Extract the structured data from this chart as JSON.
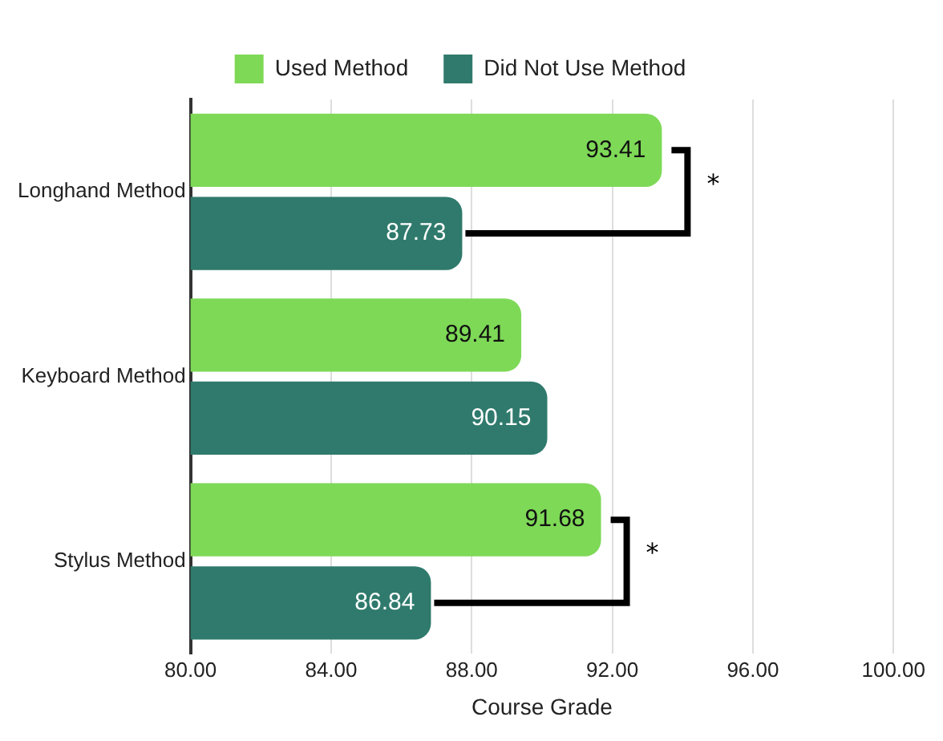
{
  "chart_data": {
    "type": "bar",
    "orientation": "horizontal",
    "xlabel": "Course Grade",
    "categories": [
      "Longhand Method",
      "Keyboard Method",
      "Stylus Method"
    ],
    "series": [
      {
        "name": "Used Method",
        "color": "#7ed957",
        "values": [
          93.41,
          89.41,
          91.68
        ]
      },
      {
        "name": "Did Not Use Method",
        "color": "#2f7a6c",
        "values": [
          87.73,
          90.15,
          86.84
        ]
      }
    ],
    "xlim": [
      80,
      100
    ],
    "xticks": [
      {
        "value": 80,
        "label": "80.00"
      },
      {
        "value": 84,
        "label": "84.00"
      },
      {
        "value": 88,
        "label": "88.00"
      },
      {
        "value": 92,
        "label": "92.00"
      },
      {
        "value": 96,
        "label": "96.00"
      },
      {
        "value": 100,
        "label": "100.00"
      }
    ],
    "grid": "x",
    "legend": "top",
    "data_labels": true,
    "annotations": [
      "*",
      "*"
    ]
  }
}
